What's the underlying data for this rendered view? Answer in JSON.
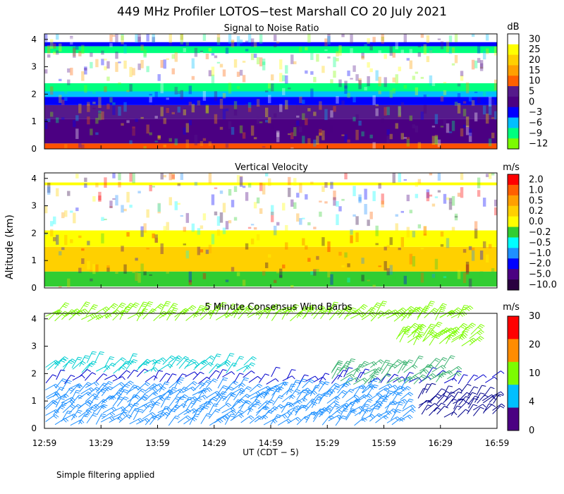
{
  "figure": {
    "title": "449 MHz Profiler LOTOS−test Marshall CO 20 July 2021",
    "ylabel": "Altitude (km)",
    "xlabel": "UT  (CDT − 5)",
    "x_ticks": [
      "12:59",
      "13:29",
      "13:59",
      "14:29",
      "14:59",
      "15:29",
      "15:59",
      "16:29",
      "16:59"
    ],
    "y_ticks": [
      "0",
      "1",
      "2",
      "3",
      "4"
    ],
    "footnote": "Simple filtering applied"
  },
  "chart_data": [
    {
      "type": "heatmap",
      "title": "Signal to Noise Ratio",
      "units": "dB",
      "x_range": [
        "12:59",
        "16:59"
      ],
      "ylim": [
        0,
        4.2
      ],
      "colorbar": {
        "labels": [
          "30",
          "25",
          "20",
          "15",
          "10",
          "5",
          "0",
          "−3",
          "−6",
          "−9",
          "−12"
        ],
        "colors": [
          "#ffffff",
          "#ffff00",
          "#ffd000",
          "#ffa000",
          "#ff6000",
          "#551a8b",
          "#4b0082",
          "#0000ff",
          "#00bfff",
          "#00ff7f",
          "#7cfc00"
        ]
      },
      "bands": [
        {
          "from": 0.0,
          "to": 0.2,
          "value": "10",
          "color": "#ff5000"
        },
        {
          "from": 0.2,
          "to": 1.1,
          "value": "0",
          "color": "#4b0082"
        },
        {
          "from": 1.1,
          "to": 1.6,
          "value": "5",
          "color": "#551a8b"
        },
        {
          "from": 1.6,
          "to": 1.9,
          "value": "−3",
          "color": "#0000ff"
        },
        {
          "from": 1.9,
          "to": 2.1,
          "value": "−6",
          "color": "#00bfff"
        },
        {
          "from": 2.1,
          "to": 2.4,
          "value": "−9",
          "color": "#00ff7f"
        },
        {
          "from": 2.4,
          "to": 3.5,
          "value": "30",
          "color": "#ffffff"
        },
        {
          "from": 3.5,
          "to": 3.75,
          "value": "−9",
          "color": "#00ff7f"
        },
        {
          "from": 3.75,
          "to": 3.9,
          "value": "−3",
          "color": "#0000ff"
        },
        {
          "from": 3.9,
          "to": 4.2,
          "value": "30",
          "color": "#ffffff"
        }
      ]
    },
    {
      "type": "heatmap",
      "title": "Vertical Velocity",
      "units": "m/s",
      "x_range": [
        "12:59",
        "16:59"
      ],
      "ylim": [
        0,
        4.2
      ],
      "colorbar": {
        "labels": [
          "2.0",
          "1.0",
          "0.5",
          "0.2",
          "0.0",
          "−0.2",
          "−0.5",
          "−1.0",
          "−2.0",
          "−5.0",
          "−10.0"
        ],
        "colors": [
          "#ff0000",
          "#ff6000",
          "#ffa000",
          "#ffd000",
          "#ffff00",
          "#32cd32",
          "#00ffff",
          "#1e90ff",
          "#0000ff",
          "#4b0082",
          "#2a0040"
        ]
      },
      "bands": [
        {
          "from": 0.05,
          "to": 0.6,
          "value": "−0.2",
          "color": "#32cd32"
        },
        {
          "from": 0.6,
          "to": 1.5,
          "value": "0.2",
          "color": "#ffd000"
        },
        {
          "from": 1.5,
          "to": 2.1,
          "value": "0.0",
          "color": "#ffff00"
        },
        {
          "from": 3.75,
          "to": 3.85,
          "value": "0.0",
          "color": "#ffff00"
        }
      ]
    },
    {
      "type": "scatter",
      "title": "5 Minute Consensus Wind Barbs",
      "units": "m/s",
      "x_range": [
        "12:59",
        "16:59"
      ],
      "ylim": [
        0,
        4.2
      ],
      "colorbar": {
        "labels": [
          "30",
          "20",
          "10",
          "4",
          "0"
        ],
        "colors": [
          "#ff0000",
          "#ff8c00",
          "#7cfc00",
          "#00bfff",
          "#4b0082"
        ]
      },
      "barb_groups": [
        {
          "hours": [
            0.0,
            3.7
          ],
          "alt": [
            3.9,
            4.2
          ],
          "speed_ms": 10,
          "color": "#7cfc00"
        },
        {
          "hours": [
            3.1,
            3.8
          ],
          "alt": [
            3.0,
            3.5
          ],
          "speed_ms": 10,
          "color": "#7cfc00"
        },
        {
          "hours": [
            0.0,
            1.8
          ],
          "alt": [
            2.0,
            2.4
          ],
          "speed_ms": 6,
          "color": "#00ced1"
        },
        {
          "hours": [
            0.0,
            4.0
          ],
          "alt": [
            1.6,
            1.9
          ],
          "speed_ms": 2,
          "color": "#0000cd"
        },
        {
          "hours": [
            0.0,
            3.2
          ],
          "alt": [
            0.1,
            1.5
          ],
          "speed_ms": 5,
          "color": "#1e90ff"
        },
        {
          "hours": [
            2.5,
            3.6
          ],
          "alt": [
            1.6,
            2.3
          ],
          "speed_ms": 7,
          "color": "#3cb371"
        },
        {
          "hours": [
            3.3,
            4.0
          ],
          "alt": [
            0.4,
            1.3
          ],
          "speed_ms": 3,
          "color": "#00008b"
        }
      ]
    }
  ]
}
